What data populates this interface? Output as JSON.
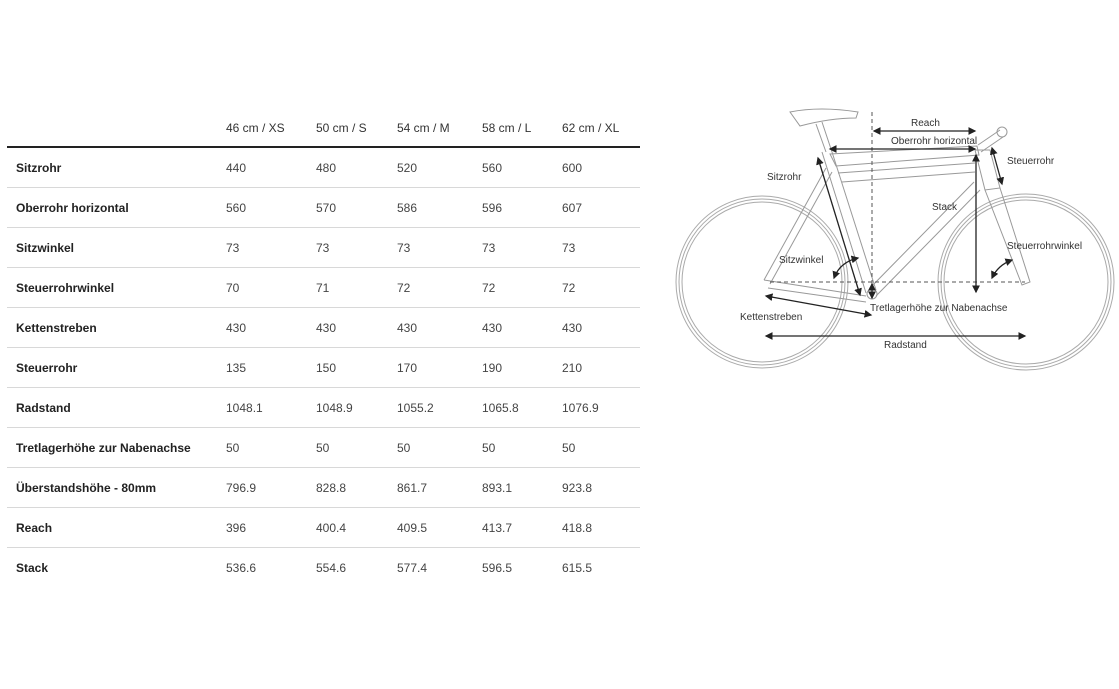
{
  "table": {
    "columns": [
      "",
      "46 cm / XS",
      "50 cm / S",
      "54 cm / M",
      "58 cm / L",
      "62 cm / XL"
    ],
    "rows": [
      {
        "label": "Sitzrohr",
        "values": [
          "440",
          "480",
          "520",
          "560",
          "600"
        ]
      },
      {
        "label": "Oberrohr horizontal",
        "values": [
          "560",
          "570",
          "586",
          "596",
          "607"
        ]
      },
      {
        "label": "Sitzwinkel",
        "values": [
          "73",
          "73",
          "73",
          "73",
          "73"
        ]
      },
      {
        "label": "Steuerrohrwinkel",
        "values": [
          "70",
          "71",
          "72",
          "72",
          "72"
        ]
      },
      {
        "label": "Kettenstreben",
        "values": [
          "430",
          "430",
          "430",
          "430",
          "430"
        ]
      },
      {
        "label": "Steuerrohr",
        "values": [
          "135",
          "150",
          "170",
          "190",
          "210"
        ]
      },
      {
        "label": "Radstand",
        "values": [
          "1048.1",
          "1048.9",
          "1055.2",
          "1065.8",
          "1076.9"
        ]
      },
      {
        "label": "Tretlagerhöhe zur Nabenachse",
        "values": [
          "50",
          "50",
          "50",
          "50",
          "50"
        ]
      },
      {
        "label": "Überstandshöhe - 80mm",
        "values": [
          "796.9",
          "828.8",
          "861.7",
          "893.1",
          "923.8"
        ]
      },
      {
        "label": "Reach",
        "values": [
          "396",
          "400.4",
          "409.5",
          "413.7",
          "418.8"
        ]
      },
      {
        "label": "Stack",
        "values": [
          "536.6",
          "554.6",
          "577.4",
          "596.5",
          "615.5"
        ]
      }
    ]
  },
  "diagram": {
    "labels": {
      "reach": "Reach",
      "oberrohr": "Oberrohr horizontal",
      "steuerrohr": "Steuerrohr",
      "sitzrohr": "Sitzrohr",
      "stack": "Stack",
      "steuerrohrwinkel": "Steuerrohrwinkel",
      "sitzwinkel": "Sitzwinkel",
      "tretlager": "Tretlagerhöhe zur Nabenachse",
      "kettenstreben": "Kettenstreben",
      "radstand": "Radstand"
    }
  }
}
